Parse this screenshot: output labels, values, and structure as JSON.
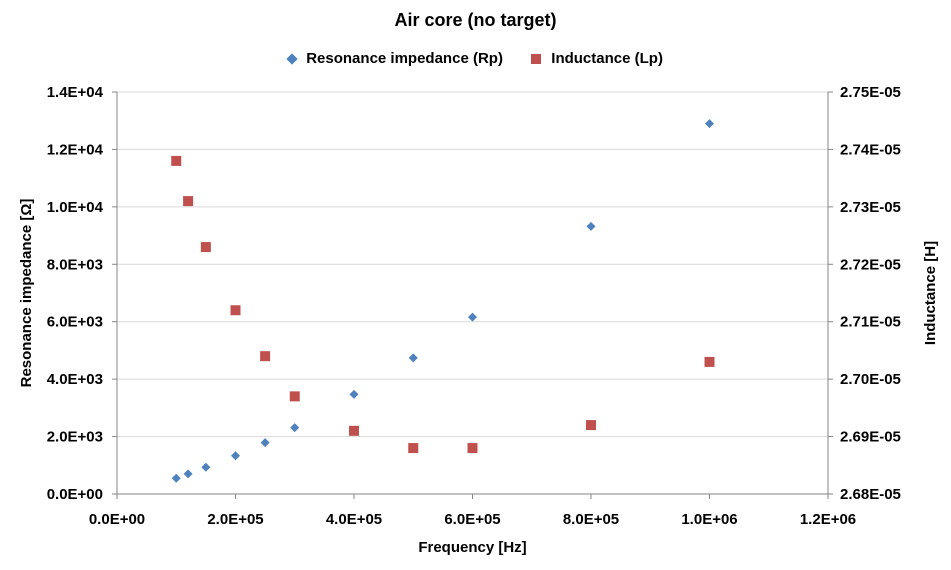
{
  "chart_data": {
    "type": "scatter",
    "title": "Air core (no target)",
    "xlabel": "Frequency [Hz]",
    "ylabel": "Resonance impedance [Ω]",
    "y2label": "Inductance [H]",
    "xlim": [
      0,
      1200000
    ],
    "ylim": [
      0,
      14000
    ],
    "y2lim": [
      2.68e-05,
      2.75e-05
    ],
    "x_ticks": [
      "0.0E+00",
      "2.0E+05",
      "4.0E+05",
      "6.0E+05",
      "8.0E+05",
      "1.0E+06",
      "1.2E+06"
    ],
    "y_ticks": [
      "0.0E+00",
      "2.0E+03",
      "4.0E+03",
      "6.0E+03",
      "8.0E+03",
      "1.0E+04",
      "1.2E+04",
      "1.4E+04"
    ],
    "y2_ticks": [
      "2.68E-05",
      "2.69E-05",
      "2.70E-05",
      "2.71E-05",
      "2.72E-05",
      "2.73E-05",
      "2.74E-05",
      "2.75E-05"
    ],
    "grid": "horizontal",
    "legend_position": "top",
    "series": [
      {
        "name": "Resonance impedance (Rp)",
        "axis": "left",
        "marker": "diamond",
        "color": "#4f81bd",
        "x": [
          100000,
          120000,
          150000,
          200000,
          250000,
          300000,
          400000,
          500000,
          600000,
          800000,
          1000000
        ],
        "y": [
          550,
          700,
          930,
          1330,
          1790,
          2310,
          3470,
          4740,
          6160,
          9320,
          12900
        ]
      },
      {
        "name": "Inductance (Lp)",
        "axis": "right",
        "marker": "square",
        "color": "#c0504d",
        "x": [
          100000,
          120000,
          150000,
          200000,
          250000,
          300000,
          400000,
          500000,
          600000,
          800000,
          1000000
        ],
        "y": [
          2.738e-05,
          2.731e-05,
          2.723e-05,
          2.712e-05,
          2.704e-05,
          2.697e-05,
          2.691e-05,
          2.688e-05,
          2.688e-05,
          2.692e-05,
          2.703e-05
        ]
      }
    ]
  }
}
